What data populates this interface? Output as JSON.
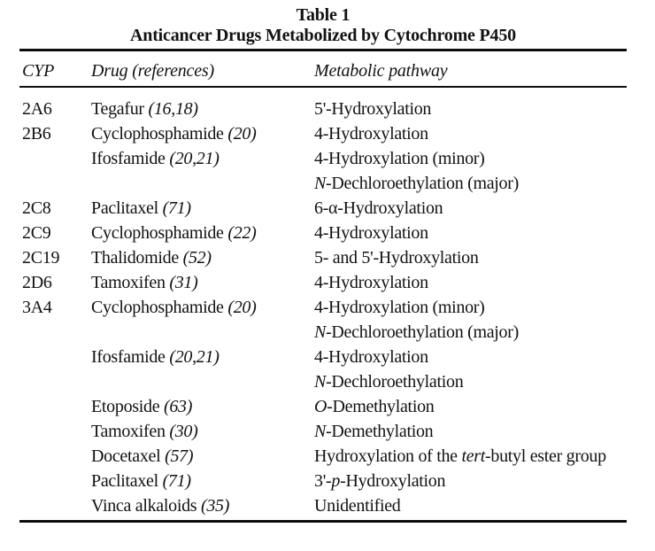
{
  "title": {
    "line1": "Table 1",
    "line2": "Anticancer Drugs Metabolized by Cytochrome P450"
  },
  "table": {
    "headers": [
      "CYP",
      "Drug (references)",
      "Metabolic pathway"
    ],
    "rows": [
      {
        "cyp": "2A6",
        "drug": [
          {
            "t": "Tegafur ",
            "i": false
          },
          {
            "t": "(16,18)",
            "i": true
          }
        ],
        "pathway": [
          [
            {
              "t": "5'-Hydroxylation",
              "i": false
            }
          ]
        ]
      },
      {
        "cyp": "2B6",
        "drug": [
          {
            "t": "Cyclophosphamide ",
            "i": false
          },
          {
            "t": "(20)",
            "i": true
          }
        ],
        "pathway": [
          [
            {
              "t": "4-Hydroxylation",
              "i": false
            }
          ]
        ]
      },
      {
        "cyp": "",
        "drug": [
          {
            "t": "Ifosfamide ",
            "i": false
          },
          {
            "t": "(20,21)",
            "i": true
          }
        ],
        "pathway": [
          [
            {
              "t": "4-Hydroxylation (minor)",
              "i": false
            }
          ],
          [
            {
              "t": "N",
              "i": true
            },
            {
              "t": "-Dechloroethylation (major)",
              "i": false
            }
          ]
        ]
      },
      {
        "cyp": "2C8",
        "drug": [
          {
            "t": "Paclitaxel ",
            "i": false
          },
          {
            "t": "(71)",
            "i": true
          }
        ],
        "pathway": [
          [
            {
              "t": "6-α-Hydroxylation",
              "i": false
            }
          ]
        ]
      },
      {
        "cyp": "2C9",
        "drug": [
          {
            "t": "Cyclophosphamide ",
            "i": false
          },
          {
            "t": "(22)",
            "i": true
          }
        ],
        "pathway": [
          [
            {
              "t": "4-Hydroxylation",
              "i": false
            }
          ]
        ]
      },
      {
        "cyp": "2C19",
        "drug": [
          {
            "t": "Thalidomide ",
            "i": false
          },
          {
            "t": "(52)",
            "i": true
          }
        ],
        "pathway": [
          [
            {
              "t": "5- and 5'-Hydroxylation",
              "i": false
            }
          ]
        ]
      },
      {
        "cyp": "2D6",
        "drug": [
          {
            "t": "Tamoxifen ",
            "i": false
          },
          {
            "t": "(31)",
            "i": true
          }
        ],
        "pathway": [
          [
            {
              "t": "4-Hydroxylation",
              "i": false
            }
          ]
        ]
      },
      {
        "cyp": "3A4",
        "drug": [
          {
            "t": "Cyclophosphamide ",
            "i": false
          },
          {
            "t": "(20)",
            "i": true
          }
        ],
        "pathway": [
          [
            {
              "t": "4-Hydroxylation (minor)",
              "i": false
            }
          ],
          [
            {
              "t": "N",
              "i": true
            },
            {
              "t": "-Dechloroethylation (major)",
              "i": false
            }
          ]
        ]
      },
      {
        "cyp": "",
        "drug": [
          {
            "t": "Ifosfamide ",
            "i": false
          },
          {
            "t": "(20,21)",
            "i": true
          }
        ],
        "pathway": [
          [
            {
              "t": "4-Hydroxylation",
              "i": false
            }
          ],
          [
            {
              "t": "N",
              "i": true
            },
            {
              "t": "-Dechloroethylation",
              "i": false
            }
          ]
        ]
      },
      {
        "cyp": "",
        "drug": [
          {
            "t": "Etoposide ",
            "i": false
          },
          {
            "t": "(63)",
            "i": true
          }
        ],
        "pathway": [
          [
            {
              "t": "O",
              "i": true
            },
            {
              "t": "-Demethylation",
              "i": false
            }
          ]
        ]
      },
      {
        "cyp": "",
        "drug": [
          {
            "t": "Tamoxifen ",
            "i": false
          },
          {
            "t": "(30)",
            "i": true
          }
        ],
        "pathway": [
          [
            {
              "t": "N",
              "i": true
            },
            {
              "t": "-Demethylation",
              "i": false
            }
          ]
        ]
      },
      {
        "cyp": "",
        "drug": [
          {
            "t": "Docetaxel ",
            "i": false
          },
          {
            "t": "(57)",
            "i": true
          }
        ],
        "pathway": [
          [
            {
              "t": "Hydroxylation of the ",
              "i": false
            },
            {
              "t": "tert",
              "i": true
            },
            {
              "t": "-butyl ester group",
              "i": false
            }
          ]
        ]
      },
      {
        "cyp": "",
        "drug": [
          {
            "t": "Paclitaxel ",
            "i": false
          },
          {
            "t": "(71)",
            "i": true
          }
        ],
        "pathway": [
          [
            {
              "t": "3'-",
              "i": false
            },
            {
              "t": "p",
              "i": true
            },
            {
              "t": "-Hydroxylation",
              "i": false
            }
          ]
        ]
      },
      {
        "cyp": "",
        "drug": [
          {
            "t": "Vinca alkaloids ",
            "i": false
          },
          {
            "t": "(35)",
            "i": true
          }
        ],
        "pathway": [
          [
            {
              "t": "Unidentified",
              "i": false
            }
          ]
        ]
      }
    ]
  },
  "colors": {
    "text": "#121212",
    "rule": "#0d0d0d",
    "background": "#ffffff"
  }
}
